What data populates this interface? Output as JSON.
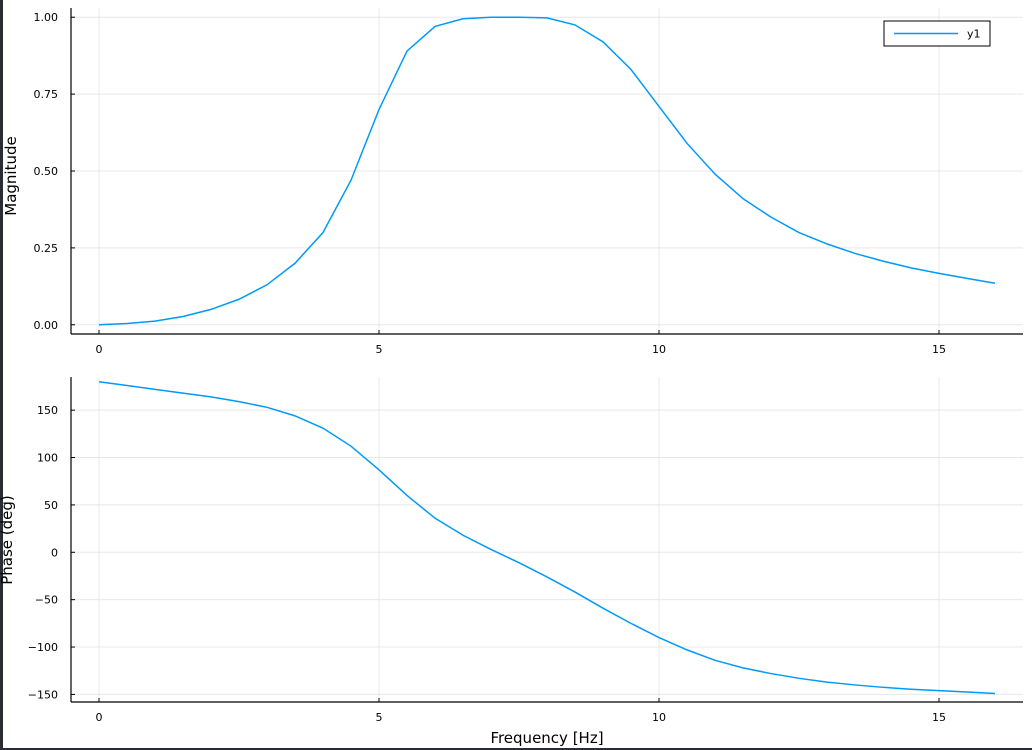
{
  "chart_data": [
    {
      "type": "line",
      "title": "",
      "xlabel": "",
      "ylabel": "Magnitude",
      "xlim": [
        -0.5,
        16.5
      ],
      "ylim": [
        -0.03,
        1.03
      ],
      "xticks": [
        0,
        5,
        10,
        15
      ],
      "xtick_labels": [
        "0",
        "5",
        "10",
        "15"
      ],
      "yticks": [
        0,
        0.25,
        0.5,
        0.75,
        1.0
      ],
      "ytick_labels": [
        "0.00",
        "0.25",
        "0.50",
        "0.75",
        "1.00"
      ],
      "grid": true,
      "legend": {
        "position": "top-right",
        "entries": [
          "y1"
        ]
      },
      "series": [
        {
          "name": "y1",
          "color": "#009AFA",
          "x": [
            0,
            0.5,
            1,
            1.5,
            2,
            2.5,
            3,
            3.5,
            4,
            4.5,
            5,
            5.5,
            6,
            6.5,
            7,
            7.5,
            8,
            8.5,
            9,
            9.5,
            10,
            10.5,
            11,
            11.5,
            12,
            12.5,
            13,
            13.5,
            14,
            14.5,
            15,
            15.5,
            16
          ],
          "y": [
            0.0,
            0.004,
            0.012,
            0.027,
            0.05,
            0.083,
            0.13,
            0.2,
            0.3,
            0.47,
            0.7,
            0.89,
            0.97,
            0.995,
            1.0,
            1.0,
            0.998,
            0.975,
            0.92,
            0.83,
            0.71,
            0.59,
            0.49,
            0.41,
            0.35,
            0.3,
            0.263,
            0.232,
            0.207,
            0.185,
            0.167,
            0.151,
            0.135
          ]
        }
      ]
    },
    {
      "type": "line",
      "title": "",
      "xlabel": "Frequency [Hz]",
      "ylabel": "Phase (deg)",
      "xlim": [
        -0.5,
        16.5
      ],
      "ylim": [
        -158,
        185
      ],
      "xticks": [
        0,
        5,
        10,
        15
      ],
      "xtick_labels": [
        "0",
        "5",
        "10",
        "15"
      ],
      "yticks": [
        -150,
        -100,
        -50,
        0,
        50,
        100,
        150
      ],
      "ytick_labels": [
        "−150",
        "−100",
        "−50",
        "0",
        "50",
        "100",
        "150"
      ],
      "grid": true,
      "series": [
        {
          "color": "#009AFA",
          "x": [
            0,
            0.5,
            1,
            1.5,
            2,
            2.5,
            3,
            3.5,
            4,
            4.5,
            5,
            5.5,
            6,
            6.5,
            7,
            7.5,
            8,
            8.5,
            9,
            9.5,
            10,
            10.5,
            11,
            11.5,
            12,
            12.5,
            13,
            13.5,
            14,
            14.5,
            15,
            15.5,
            16
          ],
          "y": [
            180,
            176,
            172,
            168,
            164,
            159,
            153,
            144,
            131,
            112,
            87,
            60,
            36,
            18,
            3,
            -11,
            -26,
            -42,
            -59,
            -75,
            -90,
            -103,
            -114,
            -122,
            -128,
            -133,
            -137,
            -140,
            -142.5,
            -144.5,
            -146,
            -147.5,
            -149
          ]
        }
      ]
    }
  ]
}
